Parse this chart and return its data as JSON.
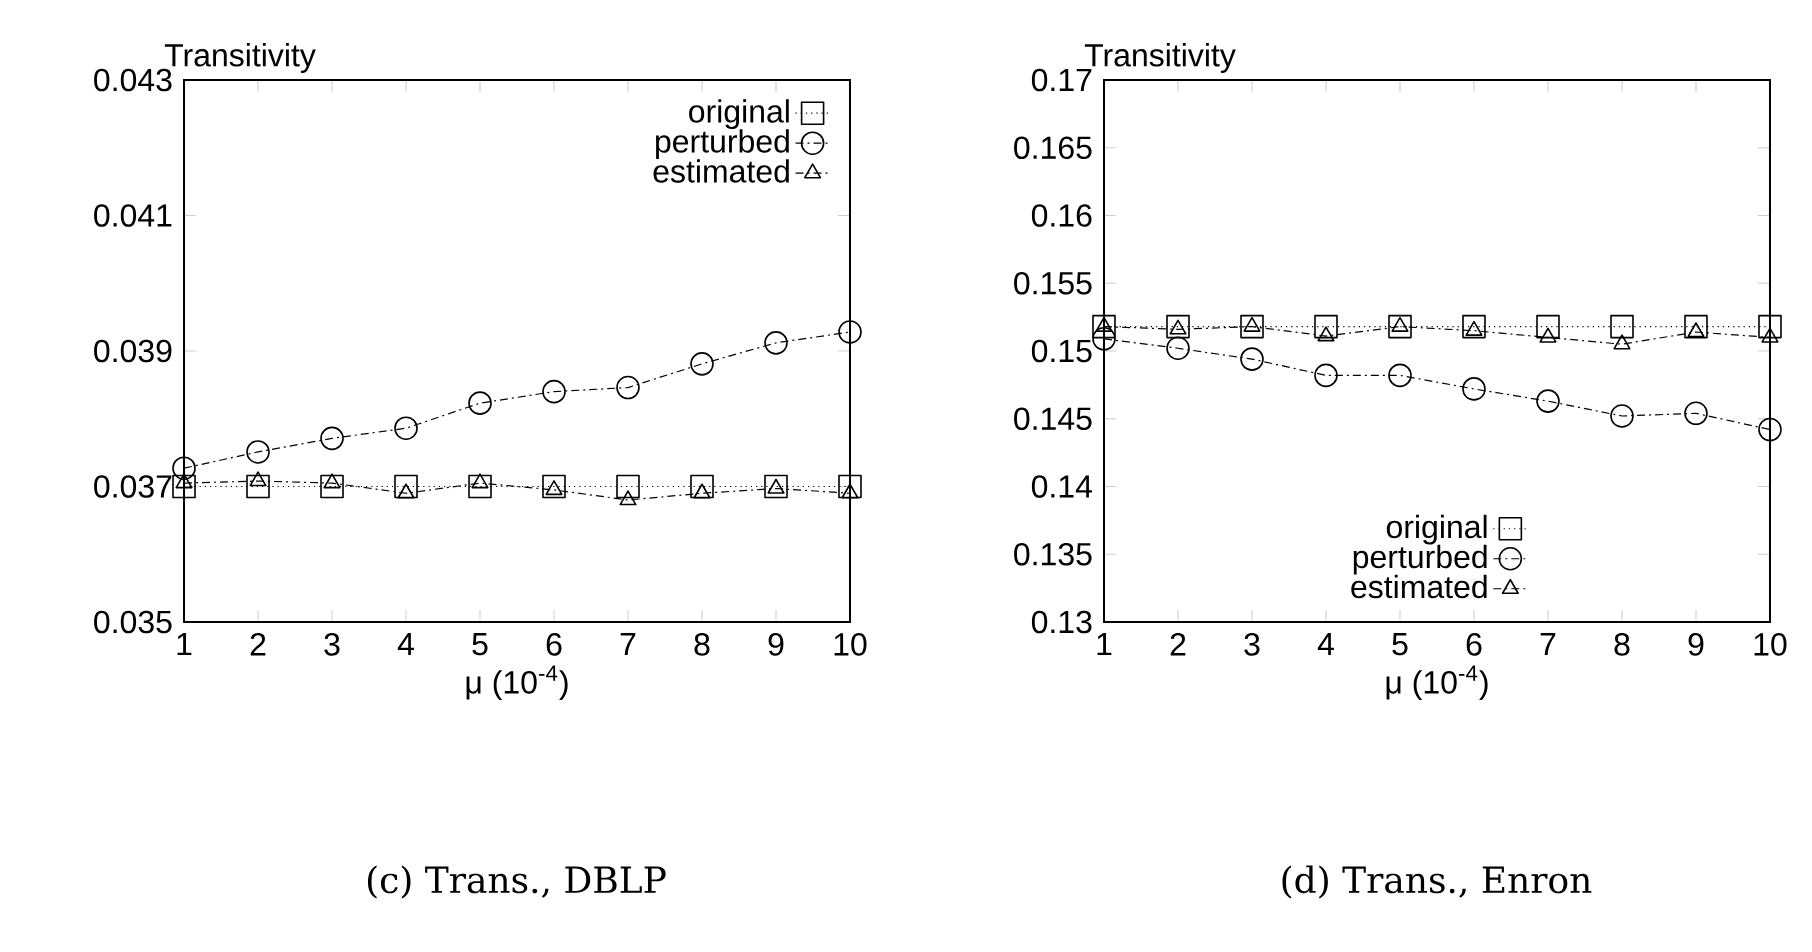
{
  "chart_data": [
    {
      "type": "line",
      "ylabel": "Transitivity",
      "xlabel": "μ (10$^{-4}$)",
      "annotations": [
        "(c) Trans., DBLP"
      ],
      "x": [
        1,
        2,
        3,
        4,
        5,
        6,
        7,
        8,
        9,
        10
      ],
      "xlim": [
        1,
        10
      ],
      "xticks": [
        1,
        2,
        3,
        4,
        5,
        6,
        7,
        8,
        9,
        10
      ],
      "ylim": [
        0.035,
        0.043
      ],
      "yticks": [
        0.035,
        0.037,
        0.039,
        0.041,
        0.043
      ],
      "grid": false,
      "legend": "top right",
      "series": [
        {
          "name": "original",
          "color": "#000000",
          "marker": "square",
          "line_style": "dotted",
          "values": [
            0.037,
            0.037,
            0.037,
            0.037,
            0.037,
            0.037,
            0.037,
            0.037,
            0.037,
            0.037
          ]
        },
        {
          "name": "perturbed",
          "color": "#000000",
          "marker": "circle",
          "line_style": "dashed",
          "values": [
            0.03727,
            0.03751,
            0.03771,
            0.03786,
            0.03823,
            0.0384,
            0.03846,
            0.03881,
            0.03912,
            0.03928
          ]
        },
        {
          "name": "estimated",
          "color": "#000000",
          "marker": "triangle",
          "line_style": "dashed",
          "values": [
            0.03705,
            0.03708,
            0.03705,
            0.0369,
            0.03705,
            0.03695,
            0.0368,
            0.0369,
            0.03697,
            0.0369
          ]
        }
      ]
    },
    {
      "type": "line",
      "ylabel": "Transitivity",
      "xlabel": "μ (10$^{-4}$)",
      "annotations": [
        "(d) Trans., Enron"
      ],
      "x": [
        1,
        2,
        3,
        4,
        5,
        6,
        7,
        8,
        9,
        10
      ],
      "xlim": [
        1,
        10
      ],
      "xticks": [
        1,
        2,
        3,
        4,
        5,
        6,
        7,
        8,
        9,
        10
      ],
      "ylim": [
        0.13,
        0.17
      ],
      "yticks": [
        0.13,
        0.135,
        0.14,
        0.145,
        0.15,
        0.155,
        0.16,
        0.165,
        0.17
      ],
      "grid": false,
      "legend": "bottom",
      "series": [
        {
          "name": "original",
          "color": "#000000",
          "marker": "square",
          "line_style": "dotted",
          "values": [
            0.1518,
            0.1518,
            0.1518,
            0.1518,
            0.1518,
            0.1518,
            0.1518,
            0.1518,
            0.1518,
            0.1518
          ]
        },
        {
          "name": "perturbed",
          "color": "#000000",
          "marker": "circle",
          "line_style": "dashed",
          "values": [
            0.1509,
            0.1502,
            0.1494,
            0.1482,
            0.1482,
            0.1472,
            0.1463,
            0.1452,
            0.1454,
            0.1442
          ]
        },
        {
          "name": "estimated",
          "color": "#000000",
          "marker": "triangle",
          "line_style": "dashed",
          "values": [
            0.1518,
            0.1516,
            0.1518,
            0.1511,
            0.1518,
            0.1515,
            0.151,
            0.1505,
            0.1514,
            0.151
          ]
        }
      ]
    }
  ]
}
